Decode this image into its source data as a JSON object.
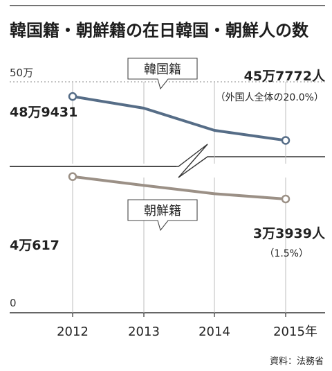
{
  "title": "韓国籍・朝鮮籍の在日韓国・朝鮮人の数",
  "source": "資料：法務省",
  "colors": {
    "korea": "#566d87",
    "joseon": "#9b9086",
    "grid": "#bcbcbc",
    "axis": "#333333"
  },
  "chart_data": [
    {
      "type": "line",
      "panel": "upper",
      "categories": [
        "2012",
        "2013",
        "2014",
        "2015年"
      ],
      "series": [
        {
          "name": "韓国籍",
          "values": [
            489431,
            481000,
            465000,
            457772
          ]
        }
      ],
      "y_tick_label": "50万",
      "y_tick_value": 500000,
      "start_label": "48万9431",
      "end_label": "45万7772人",
      "end_note": "（外国人全体の20.0%）",
      "ylim": [
        400000,
        500000
      ],
      "axis_break": true
    },
    {
      "type": "line",
      "panel": "lower",
      "categories": [
        "2012",
        "2013",
        "2014",
        "2015年"
      ],
      "series": [
        {
          "name": "朝鮮籍",
          "values": [
            40617,
            38000,
            35500,
            33939
          ]
        }
      ],
      "y_tick_label": "0",
      "y_tick_value": 0,
      "start_label": "4万617",
      "end_label": "3万3939人",
      "end_note": "（1.5%）",
      "ylim": [
        0,
        60000
      ]
    }
  ]
}
